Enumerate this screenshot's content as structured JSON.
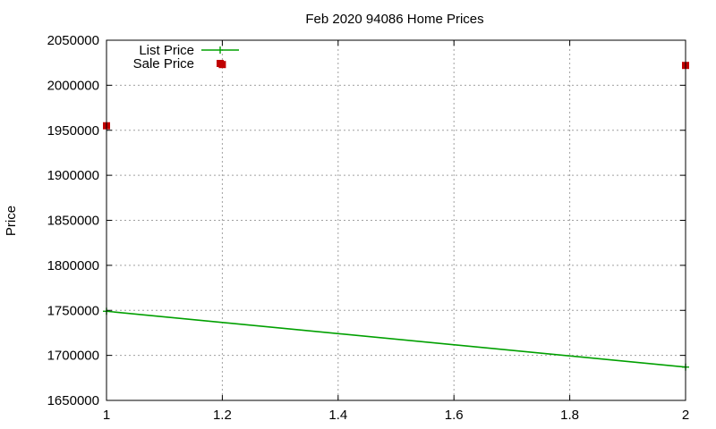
{
  "chart_data": {
    "type": "line",
    "title": "Feb 2020 94086 Home Prices",
    "xlabel": "",
    "ylabel": "Price",
    "xlim": [
      1,
      2
    ],
    "ylim": [
      1650000,
      2050000
    ],
    "x_ticks": [
      "1",
      "1.2",
      "1.4",
      "1.6",
      "1.8",
      "2"
    ],
    "y_ticks": [
      "1650000",
      "1700000",
      "1750000",
      "1800000",
      "1850000",
      "1900000",
      "1950000",
      "2000000",
      "2050000"
    ],
    "grid": true,
    "legend_position": "top-left",
    "series": [
      {
        "name": "List Price",
        "style": "line",
        "color": "#00a000",
        "x": [
          1,
          2
        ],
        "y": [
          1749000,
          1687000
        ]
      },
      {
        "name": "Sale Price",
        "style": "points",
        "color": "#c00000",
        "x": [
          1,
          1.2,
          2
        ],
        "y": [
          1955000,
          2023000,
          2022000
        ]
      }
    ]
  }
}
